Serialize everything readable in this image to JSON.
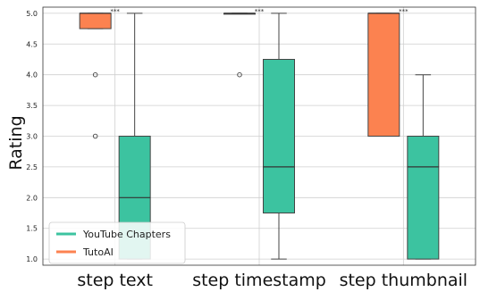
{
  "chart_data": {
    "type": "box",
    "ylabel": "Rating",
    "ylim": [
      0.9,
      5.1
    ],
    "yticks": [
      "1.0",
      "1.5",
      "2.0",
      "2.5",
      "3.0",
      "3.5",
      "4.0",
      "4.5",
      "5.0"
    ],
    "grid": true,
    "legend_position": "lower-left",
    "categories": [
      "step text",
      "step timestamp",
      "step thumbnail"
    ],
    "significance": [
      "***",
      "***",
      "***"
    ],
    "series": [
      {
        "name": "TutoAI",
        "color": "#fc8250",
        "boxes": [
          {
            "min": 4.75,
            "q1": 4.75,
            "median": 5.0,
            "q3": 5.0,
            "max": 5.0,
            "outliers": [
              4.0,
              3.0
            ]
          },
          {
            "min": 5.0,
            "q1": 5.0,
            "median": 5.0,
            "q3": 5.0,
            "max": 5.0,
            "outliers": [
              4.0
            ]
          },
          {
            "min": 3.0,
            "q1": 3.0,
            "median": 5.0,
            "q3": 5.0,
            "max": 5.0,
            "outliers": []
          }
        ]
      },
      {
        "name": "YouTube Chapters",
        "color": "#3cc3a0",
        "boxes": [
          {
            "min": 1.0,
            "q1": 1.0,
            "median": 2.0,
            "q3": 3.0,
            "max": 5.0,
            "outliers": []
          },
          {
            "min": 1.0,
            "q1": 1.75,
            "median": 2.5,
            "q3": 4.25,
            "max": 5.0,
            "outliers": []
          },
          {
            "min": 1.0,
            "q1": 1.0,
            "median": 2.5,
            "q3": 3.0,
            "max": 4.0,
            "outliers": []
          }
        ]
      }
    ],
    "legend_order": [
      1,
      0
    ]
  }
}
